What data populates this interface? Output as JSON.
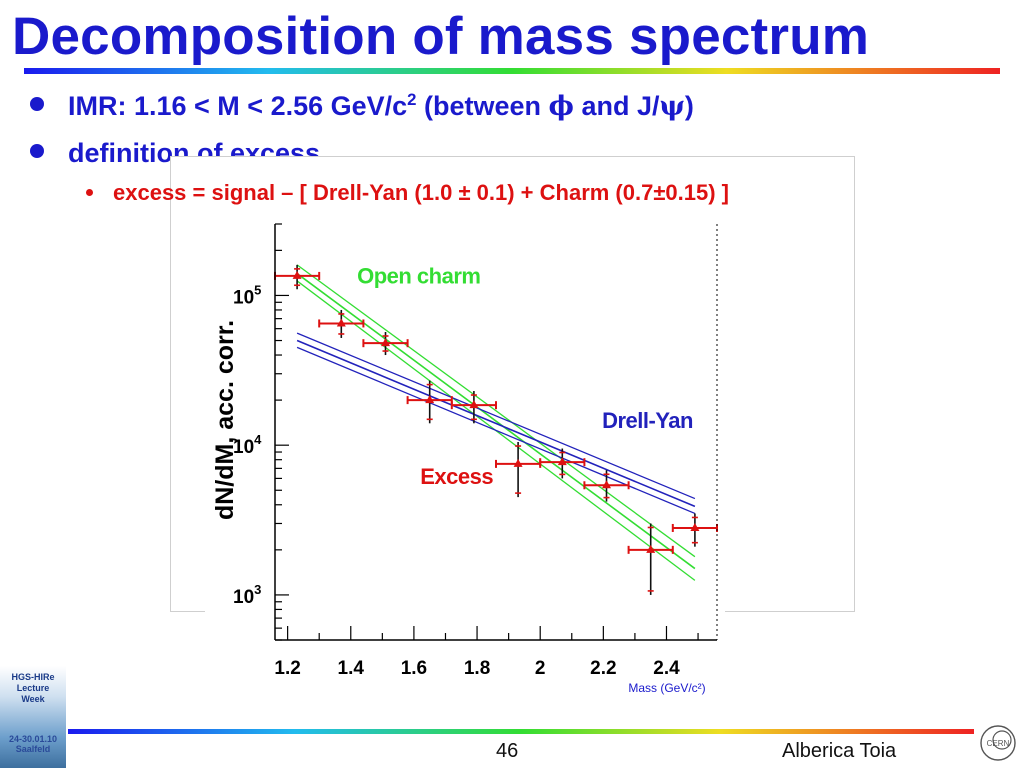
{
  "slide": {
    "title": "Decomposition of mass spectrum",
    "bullet1_pre": "IMR: 1.16 < M < 2.56 GeV/c",
    "bullet1_sup": "2",
    "bullet1_mid": " (between ",
    "bullet1_phi": "ϕ",
    "bullet1_and": " and J/",
    "bullet1_psi": "ψ",
    "bullet1_end": ")",
    "bullet2": "definition of excess",
    "bullet3": "excess = signal  –  [ Drell-Yan (1.0 ± 0.1)  +  Charm (0.7±0.15) ]",
    "page_number": "46",
    "author": "Alberica Toia",
    "logo_lines": [
      "HGS-HIRe",
      "Lecture",
      "Week"
    ],
    "logo_date_lines": [
      "24-30.01.10",
      "Saalfeld"
    ],
    "cern_logo_text": "CERN",
    "colors": {
      "title": "#1a1acc",
      "bullet3": "#dd1111",
      "excess": "#dd1111",
      "open_charm": "#33dd33",
      "drell_yan": "#2222bb"
    }
  },
  "chart_data": {
    "type": "scatter",
    "ylabel": "dN/dM, acc. corr.",
    "xlabel": "Mass (GeV/c²)",
    "xlim": [
      1.16,
      2.56
    ],
    "ylim": [
      500,
      300000
    ],
    "yscale": "log",
    "x_ticks": [
      "1.2",
      "1.4",
      "1.6",
      "1.8",
      "2",
      "2.2",
      "2.4"
    ],
    "x_tick_values": [
      1.2,
      1.4,
      1.6,
      1.8,
      2.0,
      2.2,
      2.4
    ],
    "y_ticks": [
      {
        "base": "10",
        "exp": "3",
        "value": 1000
      },
      {
        "base": "10",
        "exp": "4",
        "value": 10000
      },
      {
        "base": "10",
        "exp": "5",
        "value": 100000
      }
    ],
    "annotations": [
      {
        "text": "Open charm",
        "color": "#33dd33",
        "x": 1.42,
        "y": 120000
      },
      {
        "text": "Drell-Yan",
        "color": "#2222bb",
        "x": 2.34,
        "y": 13000
      },
      {
        "text": "Excess",
        "color": "#dd1111",
        "x": 1.62,
        "y": 5500
      }
    ],
    "series": [
      {
        "name": "Excess",
        "color": "#dd1111",
        "points": [
          {
            "x": 1.23,
            "y": 135000,
            "xerr": 0.07,
            "ylo": 110000,
            "yhi": 160000
          },
          {
            "x": 1.37,
            "y": 65000,
            "xerr": 0.07,
            "ylo": 52000,
            "yhi": 80000
          },
          {
            "x": 1.51,
            "y": 48000,
            "xerr": 0.07,
            "ylo": 40000,
            "yhi": 57000
          },
          {
            "x": 1.65,
            "y": 20000,
            "xerr": 0.07,
            "ylo": 14000,
            "yhi": 27000
          },
          {
            "x": 1.79,
            "y": 18500,
            "xerr": 0.07,
            "ylo": 14000,
            "yhi": 23000
          },
          {
            "x": 1.93,
            "y": 7500,
            "xerr": 0.07,
            "ylo": 4500,
            "yhi": 10500
          },
          {
            "x": 2.07,
            "y": 7700,
            "xerr": 0.07,
            "ylo": 6000,
            "yhi": 9500
          },
          {
            "x": 2.21,
            "y": 5400,
            "xerr": 0.07,
            "ylo": 4200,
            "yhi": 6800
          },
          {
            "x": 2.35,
            "y": 2000,
            "xerr": 0.07,
            "ylo": 1000,
            "yhi": 3000
          },
          {
            "x": 2.49,
            "y": 2800,
            "xerr": 0.07,
            "ylo": 2100,
            "yhi": 3500
          }
        ]
      }
    ],
    "bands": [
      {
        "name": "Open charm",
        "color": "#33dd33",
        "x": [
          1.23,
          2.49
        ],
        "y_center": [
          140000,
          1500
        ],
        "y_lo": [
          125000,
          1250
        ],
        "y_hi": [
          160000,
          1800
        ]
      },
      {
        "name": "Drell-Yan",
        "color": "#2222bb",
        "x": [
          1.23,
          2.49
        ],
        "y_center": [
          50000,
          3900
        ],
        "y_lo": [
          45000,
          3500
        ],
        "y_hi": [
          56000,
          4400
        ]
      }
    ]
  }
}
